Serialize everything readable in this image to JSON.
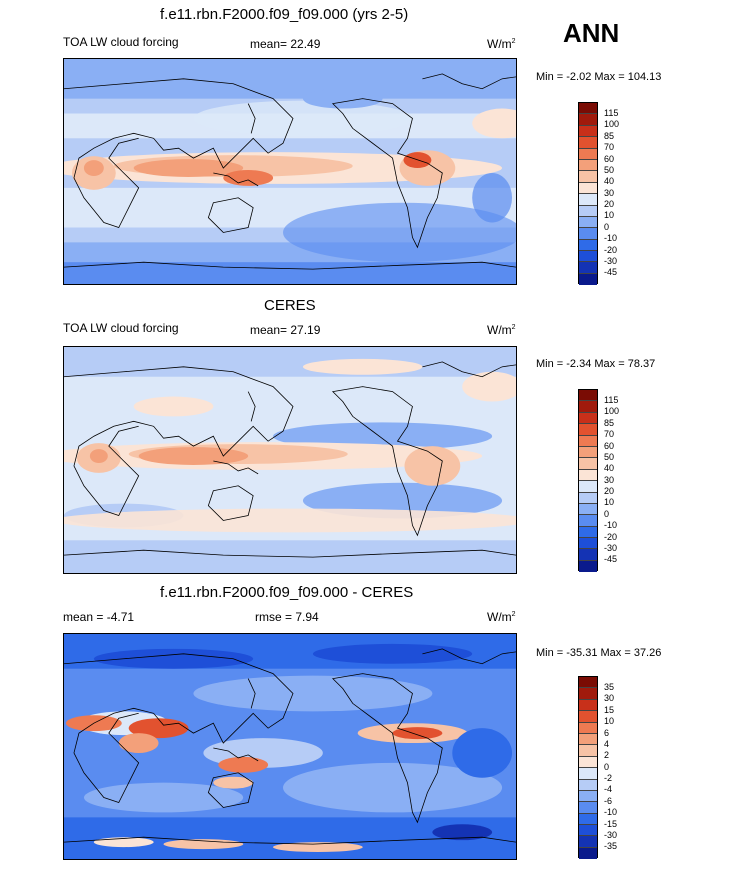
{
  "season": "ANN",
  "units_base": "W/m",
  "units_exp": "2",
  "colors": {
    "scale": [
      "#0a1a8c",
      "#1433b4",
      "#1e4fd8",
      "#2f6be8",
      "#5a8cf0",
      "#8aaff4",
      "#b6ccf6",
      "#dce8f9",
      "#fbe4d6",
      "#f7c3a6",
      "#f3a07a",
      "#ee7a52",
      "#e2522f",
      "#c8301a",
      "#a01a0c",
      "#7a0c04"
    ]
  },
  "panels": [
    {
      "id": "model",
      "title": "f.e11.rbn.F2000.f09_f09.000 (yrs 2-5)",
      "left_label": "TOA LW cloud forcing",
      "center_label": "mean=  22.49",
      "min_max": "Min =  -2.02 Max = 104.13",
      "colorbar_labels": [
        "115",
        "100",
        "85",
        "70",
        "60",
        "50",
        "40",
        "30",
        "20",
        "10",
        "0",
        "-10",
        "-20",
        "-30",
        "-45"
      ]
    },
    {
      "id": "obs",
      "title": "CERES",
      "left_label": "TOA LW cloud forcing",
      "center_label": "mean=  27.19",
      "min_max": "Min =  -2.34 Max = 78.37",
      "colorbar_labels": [
        "115",
        "100",
        "85",
        "70",
        "60",
        "50",
        "40",
        "30",
        "20",
        "10",
        "0",
        "-10",
        "-20",
        "-30",
        "-45"
      ]
    },
    {
      "id": "diff",
      "title": "f.e11.rbn.F2000.f09_f09.000 - CERES",
      "left_label": "mean =  -4.71",
      "center_label": "rmse =   7.94",
      "min_max": "Min = -35.31 Max =  37.26",
      "colorbar_labels": [
        "35",
        "30",
        "15",
        "10",
        "6",
        "4",
        "2",
        "0",
        "-2",
        "-4",
        "-6",
        "-10",
        "-15",
        "-30",
        "-35"
      ]
    }
  ]
}
